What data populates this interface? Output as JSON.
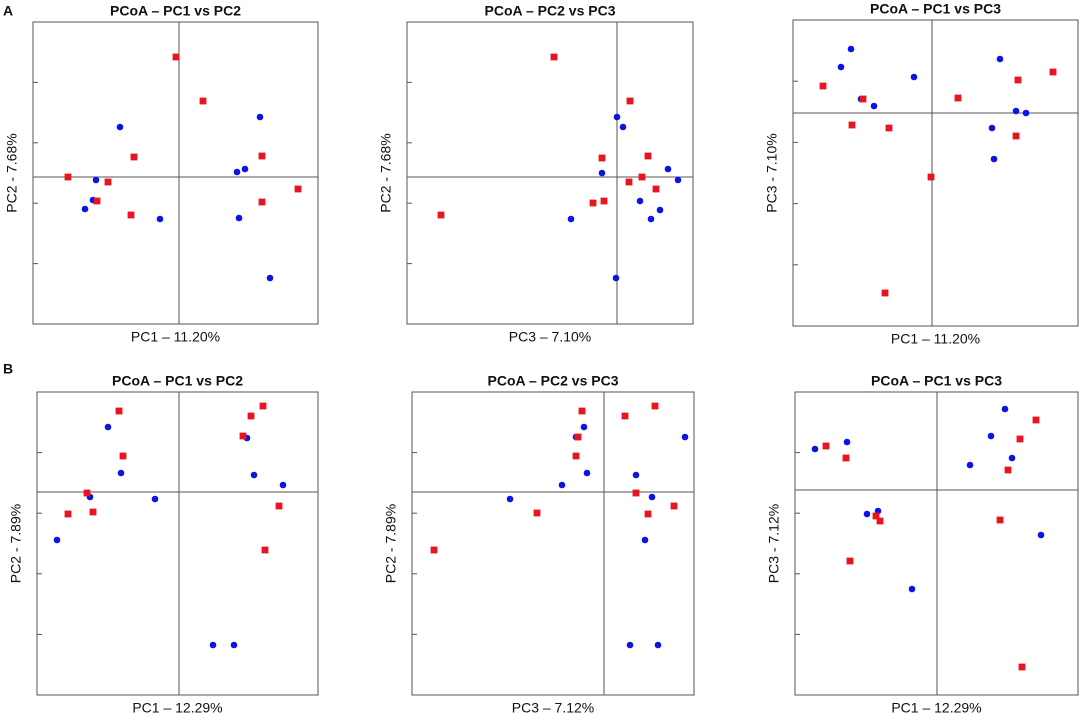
{
  "panel_labels": [
    "A",
    "B"
  ],
  "chart_data": [
    {
      "type": "scatter",
      "title": "PCoA – PC1 vs PC2",
      "x_label": "PC1 – 11.20%",
      "y_label": "PC2 - 7.68%",
      "xlim": [
        -146,
        139
      ],
      "ylim": [
        -147,
        155
      ],
      "series": [
        {
          "color": "#0a14e6",
          "x": [
            -59,
            -83,
            -86,
            -94,
            -19,
            58,
            66,
            81,
            60,
            91
          ],
          "values": [
            50,
            -3,
            -23,
            -32,
            -42,
            5,
            8,
            60,
            -41,
            -101
          ]
        },
        {
          "color": "#e8141e",
          "x": [
            -3,
            24,
            -45,
            -111,
            -71,
            -82,
            -48,
            83,
            119,
            83
          ],
          "values": [
            120,
            76,
            20,
            0,
            -5,
            -24,
            -38,
            21,
            -12,
            -25
          ]
        }
      ]
    },
    {
      "type": "scatter",
      "title": "PCoA – PC2 vs PC3",
      "x_label": "PC3 – 7.10%",
      "y_label": "PC2 - 7.68%",
      "xlim": [
        -210,
        76
      ],
      "ylim": [
        -147,
        155
      ],
      "series": [
        {
          "color": "#0a14e6",
          "x": [
            0,
            6,
            -15,
            51,
            61,
            23,
            43,
            34,
            -46,
            -1
          ],
          "values": [
            60,
            50,
            4,
            8,
            -3,
            -24,
            -33,
            -42,
            -42,
            -101
          ]
        },
        {
          "color": "#e8141e",
          "x": [
            -63,
            13,
            -15,
            31,
            25,
            12,
            39,
            -24,
            -13,
            -176
          ],
          "values": [
            120,
            76,
            19,
            21,
            0,
            -5,
            -12,
            -26,
            -24,
            -38
          ]
        }
      ]
    },
    {
      "type": "scatter",
      "title": "PCoA – PC1 vs PC3",
      "x_label": "PC1 – 11.20%",
      "y_label": "PC3 - 7.10%",
      "xlim": [
        -139,
        146
      ],
      "ylim": [
        -213,
        93
      ],
      "series": [
        {
          "color": "#0a14e6",
          "x": [
            -81,
            -91,
            -71,
            -58,
            -18,
            68,
            84,
            94,
            60,
            62
          ],
          "values": [
            64,
            46,
            14,
            7,
            36,
            54,
            2,
            0,
            -15,
            -46
          ]
        },
        {
          "color": "#e8141e",
          "x": [
            -109,
            -69,
            -80,
            -43,
            26,
            86,
            121,
            84,
            -1,
            -47
          ],
          "values": [
            27,
            14,
            -12,
            -15,
            15,
            33,
            41,
            -23,
            -64,
            -180
          ]
        }
      ]
    },
    {
      "type": "scatter",
      "title": "PCoA – PC1 vs PC2",
      "x_label": "PC1 – 12.29%",
      "y_label": "PC2 - 7.89%",
      "xlim": [
        -142,
        139
      ],
      "ylim": [
        -203,
        100
      ],
      "series": [
        {
          "color": "#0a14e6",
          "x": [
            -71,
            -58,
            -89,
            -24,
            -122,
            68,
            75,
            104,
            34,
            55
          ],
          "values": [
            65,
            19,
            -5,
            -7,
            -48,
            54,
            17,
            7,
            -153,
            -153
          ]
        },
        {
          "color": "#e8141e",
          "x": [
            -60,
            -56,
            -92,
            -86,
            -111,
            72,
            84,
            64,
            100,
            86
          ],
          "values": [
            81,
            36,
            -1,
            -20,
            -22,
            76,
            86,
            56,
            -14,
            -58
          ]
        }
      ]
    },
    {
      "type": "scatter",
      "title": "PCoA – PC2 vs PC3",
      "x_label": "PC3 – 7.12%",
      "y_label": "PC2 - 7.89%",
      "xlim": [
        -192,
        90
      ],
      "ylim": [
        -203,
        100
      ],
      "series": [
        {
          "color": "#0a14e6",
          "x": [
            -20,
            -28,
            -17,
            -42,
            -94,
            81,
            32,
            48,
            41,
            26,
            54
          ],
          "values": [
            65,
            55,
            19,
            7,
            -7,
            55,
            17,
            -5,
            -48,
            -153,
            -153
          ]
        },
        {
          "color": "#e8141e",
          "x": [
            -22,
            -26,
            -28,
            -67,
            -170,
            21,
            51,
            32,
            44,
            70
          ],
          "values": [
            81,
            55,
            36,
            -21,
            -58,
            76,
            86,
            -1,
            -22,
            -14
          ]
        }
      ]
    },
    {
      "type": "scatter",
      "title": "PCoA – PC1 vs PC3",
      "x_label": "PC1 – 12.29%",
      "y_label": "PC3 - 7.12%",
      "xlim": [
        -142,
        141
      ],
      "ylim": [
        -205,
        98
      ],
      "series": [
        {
          "color": "#0a14e6",
          "x": [
            -122,
            -90,
            68,
            54,
            75,
            33,
            -70,
            -59,
            104,
            -25
          ],
          "values": [
            41,
            48,
            81,
            54,
            32,
            25,
            -24,
            -21,
            -45,
            -99
          ]
        },
        {
          "color": "#e8141e",
          "x": [
            -111,
            -91,
            99,
            83,
            71,
            -61,
            -57,
            -87,
            63,
            85
          ],
          "values": [
            44,
            32,
            70,
            51,
            20,
            -26,
            -31,
            -71,
            -30,
            -177
          ]
        }
      ]
    }
  ]
}
